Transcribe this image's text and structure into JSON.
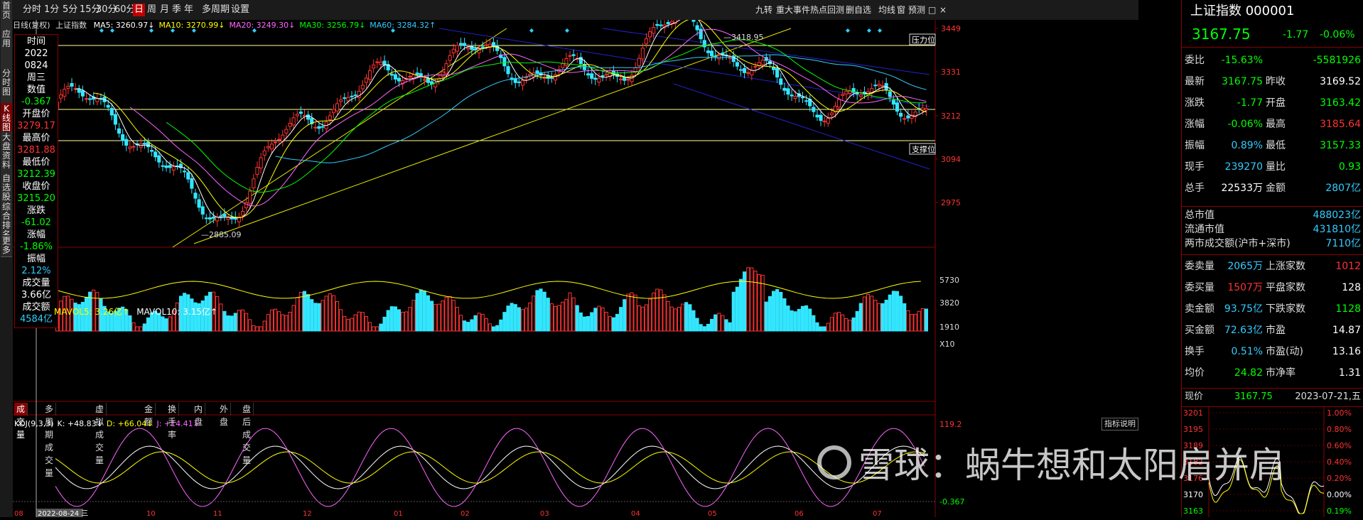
{
  "side_tabs": [
    "首页",
    "应用",
    "分时图",
    "K线图",
    "大盘资料",
    "自选股",
    "综合排名",
    "更多"
  ],
  "toolbar": {
    "periods": [
      "分时",
      "1分",
      "5分",
      "15分",
      "30分",
      "60分",
      "日",
      "周",
      "月",
      "季",
      "年",
      "多周期",
      "设置"
    ],
    "active_period": "日",
    "right_buttons": [
      "九转",
      "重大事件",
      "热点回测",
      "删自选",
      "均线",
      "窗",
      "预测"
    ]
  },
  "chart_header": {
    "label": "日线(复权)",
    "name": "上证指数",
    "ma": [
      {
        "text": "MA5: 3260.97↓",
        "color": "#ffffff"
      },
      {
        "text": "MA10: 3270.99↓",
        "color": "#ffff00"
      },
      {
        "text": "MA20: 3249.30↓",
        "color": "#ff66ff"
      },
      {
        "text": "MA30: 3256.79↓",
        "color": "#00ff00"
      },
      {
        "text": "MA60: 3284.32↑",
        "color": "#33ccff"
      }
    ]
  },
  "price_axis": [
    "3449",
    "3331",
    "3212",
    "3094",
    "2975"
  ],
  "volume_axis": [
    "5730",
    "3820",
    "1910",
    "X10"
  ],
  "kdj_axis": [
    "119.2",
    "-0.367"
  ],
  "chart_labels": {
    "high": "3418.95",
    "low": "2885.09",
    "resistance": "压力位",
    "support": "支撑位",
    "indicator_help": "指标说明"
  },
  "date_axis": [
    "08",
    "2022-08-24 三",
    "10",
    "11",
    "12",
    "01",
    "02",
    "03",
    "04",
    "05",
    "06",
    "07"
  ],
  "info_box": [
    {
      "text": "时间",
      "color": "#ffffff"
    },
    {
      "text": "2022",
      "color": "#ffffff"
    },
    {
      "text": "0824",
      "color": "#ffffff"
    },
    {
      "text": "周三",
      "color": "#ffffff"
    },
    {
      "text": "数值",
      "color": "#ffffff"
    },
    {
      "text": "-0.367",
      "color": "#00ff00"
    },
    {
      "text": "开盘价",
      "color": "#ffffff"
    },
    {
      "text": "3279.17",
      "color": "#ff3333"
    },
    {
      "text": "最高价",
      "color": "#ffffff"
    },
    {
      "text": "3281.88",
      "color": "#ff3333"
    },
    {
      "text": "最低价",
      "color": "#ffffff"
    },
    {
      "text": "3212.39",
      "color": "#00ff00"
    },
    {
      "text": "收盘价",
      "color": "#ffffff"
    },
    {
      "text": "3215.20",
      "color": "#00ff00"
    },
    {
      "text": "涨跌",
      "color": "#ffffff"
    },
    {
      "text": "-61.02",
      "color": "#00ff00"
    },
    {
      "text": "涨幅",
      "color": "#ffffff"
    },
    {
      "text": "-1.86%",
      "color": "#00ff00"
    },
    {
      "text": "振幅",
      "color": "#ffffff"
    },
    {
      "text": "2.12%",
      "color": "#33ccff"
    },
    {
      "text": "成交量",
      "color": "#ffffff"
    },
    {
      "text": "3.66亿",
      "color": "#ffffff"
    },
    {
      "text": "成交额",
      "color": "#ffffff"
    },
    {
      "text": "4584亿",
      "color": "#33ccff"
    }
  ],
  "volume_header": [
    {
      "text": "MAVOL5: 3.26亿↑",
      "color": "#ffff00"
    },
    {
      "text": "MAVOL10: 3.15亿↑",
      "color": "#ffffff"
    }
  ],
  "volume_tabs": [
    "成交量",
    "多周期成交量",
    "虚拟成交量",
    "金额",
    "换手率",
    "内盘",
    "外盘",
    "盘后成交量"
  ],
  "kdj_header": [
    {
      "text": "KDJ(9,3,3)",
      "color": "#ffffff"
    },
    {
      "text": "K: +48.83↓",
      "color": "#ffffff"
    },
    {
      "text": "D: +66.04↓",
      "color": "#ffff00"
    },
    {
      "text": "J: +14.41↓",
      "color": "#ff66ff"
    }
  ],
  "right_panel": {
    "title": "上证指数 000001",
    "price": "3167.75",
    "change": "-1.77",
    "change_pct": "-0.06%",
    "rows": [
      {
        "l": "委比",
        "lv": "-15.63%",
        "lc": "#00ff00",
        "r": "",
        "rv": "-5581926",
        "rc": "#00ff00"
      },
      {
        "l": "最新",
        "lv": "3167.75",
        "lc": "#00ff00",
        "r": "昨收",
        "rv": "3169.52",
        "rc": "#ffffff"
      },
      {
        "l": "涨跌",
        "lv": "-1.77",
        "lc": "#00ff00",
        "r": "开盘",
        "rv": "3163.42",
        "rc": "#00ff00"
      },
      {
        "l": "涨幅",
        "lv": "-0.06%",
        "lc": "#00ff00",
        "r": "最高",
        "rv": "3185.64",
        "rc": "#ff3333"
      },
      {
        "l": "振幅",
        "lv": "0.89%",
        "lc": "#33ccff",
        "r": "最低",
        "rv": "3157.33",
        "rc": "#00ff00"
      },
      {
        "l": "现手",
        "lv": "239270",
        "lc": "#33ccff",
        "r": "量比",
        "rv": "0.93",
        "rc": "#00ff00"
      },
      {
        "l": "总手",
        "lv": "22533万",
        "lc": "#ffffff",
        "r": "金额",
        "rv": "2807亿",
        "rc": "#33ccff"
      }
    ],
    "cap_rows": [
      {
        "l": "总市值",
        "v": "488023亿"
      },
      {
        "l": "流通市值",
        "v": "431810亿"
      },
      {
        "l": "两市成交额(沪市+深市)",
        "v": "7110亿"
      }
    ],
    "rows2": [
      {
        "l": "委卖量",
        "lv": "2065万",
        "lc": "#33ccff",
        "r": "上涨家数",
        "rv": "1012",
        "rc": "#ff3333"
      },
      {
        "l": "委买量",
        "lv": "1507万",
        "lc": "#ff3333",
        "r": "平盘家数",
        "rv": "128",
        "rc": "#ffffff"
      },
      {
        "l": "卖金额",
        "lv": "93.75亿",
        "lc": "#33ccff",
        "r": "下跌家数",
        "rv": "1128",
        "rc": "#00ff00"
      },
      {
        "l": "买金额",
        "lv": "72.63亿",
        "lc": "#33ccff",
        "r": "市盈",
        "rv": "14.87",
        "rc": "#ffffff"
      },
      {
        "l": "换手",
        "lv": "0.51%",
        "lc": "#33ccff",
        "r": "市盈(动)",
        "rv": "13.16",
        "rc": "#ffffff"
      },
      {
        "l": "均价",
        "lv": "24.82",
        "lc": "#00ff00",
        "r": "市净率",
        "rv": "1.31",
        "rc": "#ffffff"
      }
    ],
    "quote_row": {
      "l": "现价",
      "v": "3167.75",
      "date": "2023-07-21,五"
    },
    "mini_left_axis": [
      "3201",
      "3195",
      "3189",
      "3182",
      "3176",
      "3170",
      "3163"
    ],
    "mini_right_axis": [
      "1.00%",
      "0.80%",
      "0.60%",
      "0.40%",
      "0.20%",
      "0.00%",
      "0.19%"
    ]
  },
  "watermark": "雪球：蜗牛想和太阳肩并肩"
}
